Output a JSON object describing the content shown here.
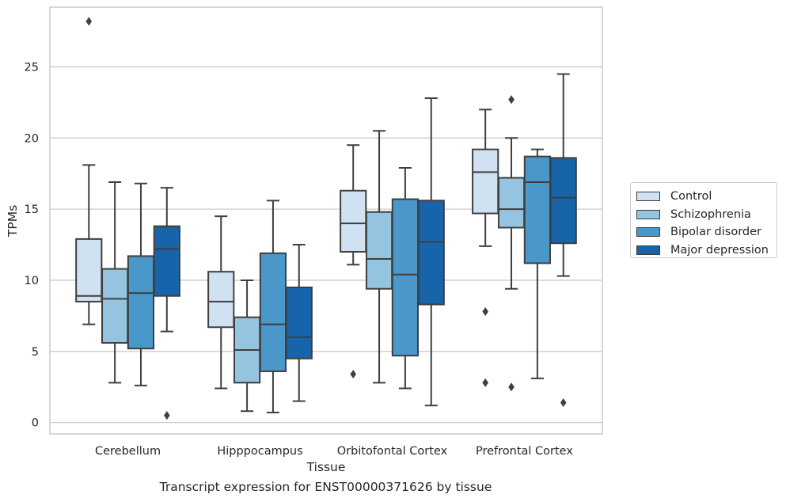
{
  "chart_data": {
    "type": "box",
    "title": "",
    "caption": "Transcript expression for ENST00000371626 by tissue",
    "xlabel": "Tissue",
    "ylabel": "TPMs",
    "ylim": [
      -0.8,
      29.2
    ],
    "yticks": [
      0,
      5,
      10,
      15,
      20,
      25
    ],
    "grid": true,
    "legend_position": "right",
    "categories": [
      "Cerebellum",
      "Hipppocampus",
      "Orbitofontal Cortex",
      "Prefrontal Cortex"
    ],
    "series": [
      {
        "name": "Control",
        "color": "#d0e1f2",
        "boxes": [
          {
            "whislo": 6.9,
            "q1": 8.5,
            "med": 8.9,
            "q3": 12.9,
            "whishi": 18.1,
            "fliers": [
              28.2
            ]
          },
          {
            "whislo": 2.4,
            "q1": 6.7,
            "med": 8.5,
            "q3": 10.6,
            "whishi": 14.5,
            "fliers": []
          },
          {
            "whislo": 11.1,
            "q1": 12.0,
            "med": 14.0,
            "q3": 16.3,
            "whishi": 19.5,
            "fliers": [
              3.4
            ]
          },
          {
            "whislo": 12.4,
            "q1": 14.7,
            "med": 17.6,
            "q3": 19.2,
            "whishi": 22.0,
            "fliers": [
              7.8,
              2.8
            ]
          }
        ]
      },
      {
        "name": "Schizophrenia",
        "color": "#94c4df",
        "boxes": [
          {
            "whislo": 2.8,
            "q1": 5.6,
            "med": 8.7,
            "q3": 10.8,
            "whishi": 16.9,
            "fliers": []
          },
          {
            "whislo": 0.8,
            "q1": 2.8,
            "med": 5.1,
            "q3": 7.4,
            "whishi": 10.0,
            "fliers": []
          },
          {
            "whislo": 2.8,
            "q1": 9.4,
            "med": 11.5,
            "q3": 14.8,
            "whishi": 20.5,
            "fliers": []
          },
          {
            "whislo": 9.4,
            "q1": 13.7,
            "med": 15.0,
            "q3": 17.2,
            "whishi": 20.0,
            "fliers": [
              2.5,
              22.7
            ]
          }
        ]
      },
      {
        "name": "Bipolar disorder",
        "color": "#4a98c9",
        "boxes": [
          {
            "whislo": 2.6,
            "q1": 5.2,
            "med": 9.1,
            "q3": 11.7,
            "whishi": 16.8,
            "fliers": []
          },
          {
            "whislo": 0.7,
            "q1": 3.6,
            "med": 6.9,
            "q3": 11.9,
            "whishi": 15.6,
            "fliers": []
          },
          {
            "whislo": 2.4,
            "q1": 4.7,
            "med": 10.4,
            "q3": 15.7,
            "whishi": 17.9,
            "fliers": []
          },
          {
            "whislo": 3.1,
            "q1": 11.2,
            "med": 16.9,
            "q3": 18.7,
            "whishi": 19.2,
            "fliers": []
          }
        ]
      },
      {
        "name": "Major depression",
        "color": "#1764ab",
        "boxes": [
          {
            "whislo": 6.4,
            "q1": 8.9,
            "med": 12.2,
            "q3": 13.8,
            "whishi": 16.5,
            "fliers": [
              0.5
            ]
          },
          {
            "whislo": 1.5,
            "q1": 4.5,
            "med": 6.0,
            "q3": 9.5,
            "whishi": 12.5,
            "fliers": []
          },
          {
            "whislo": 1.2,
            "q1": 8.3,
            "med": 12.7,
            "q3": 15.6,
            "whishi": 22.8,
            "fliers": []
          },
          {
            "whislo": 10.3,
            "q1": 12.6,
            "med": 15.8,
            "q3": 18.6,
            "whishi": 24.5,
            "fliers": [
              1.4
            ]
          }
        ]
      }
    ]
  }
}
